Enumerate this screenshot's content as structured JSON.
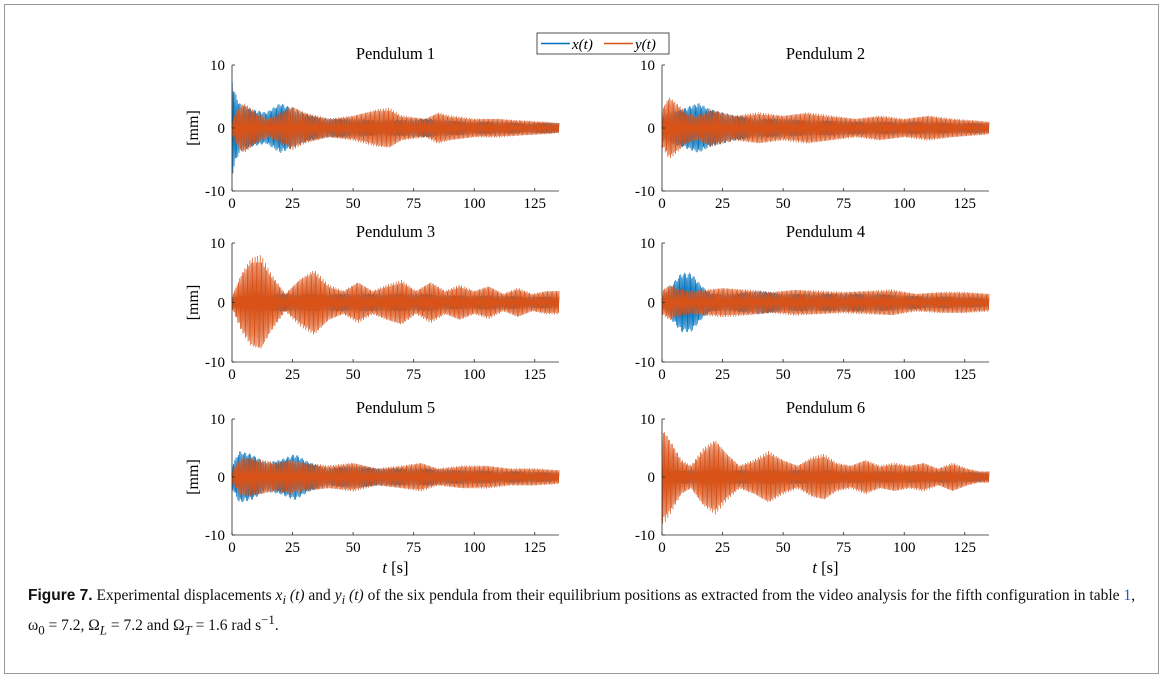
{
  "figure": {
    "caption": {
      "label": "Figure 7.",
      "part1": " Experimental displacements ",
      "var_x": "x",
      "sub_i": "i",
      "arg_t": " (t)",
      "and": " and ",
      "var_y": "y",
      "part2": " of the six pendula from their equilibrium positions as extracted from the video analysis for the fifth configuration in table ",
      "table_ref": "1",
      "part3": ", ω",
      "sub_0": "0",
      "part4": " = 7.2, Ω",
      "sub_L": "L",
      "part5": " = 7.2 and Ω",
      "sub_T": "T",
      "part6": " = 1.6 rad s",
      "sup": "−1",
      "part7": "."
    },
    "legend": {
      "x_label": "x(t)",
      "y_label": "y(t)",
      "position": "top-center"
    },
    "ylabel": "[mm]",
    "xlabel_var": "t",
    "xlabel_unit": "[s]"
  },
  "colors": {
    "x_series": "#0072BD",
    "y_series": "#D95319",
    "axes": "#262626"
  },
  "chart_data": [
    {
      "type": "line",
      "title": "Pendulum 1",
      "xlim": [
        0,
        135
      ],
      "ylim": [
        -10,
        10
      ],
      "xticks": [
        "0",
        "25",
        "50",
        "75",
        "100",
        "125"
      ],
      "yticks": [
        "10",
        "0",
        "-10"
      ],
      "ylabel": "[mm]",
      "xlabel": "",
      "series": [
        {
          "name": "x(t)",
          "envelope_x": [
            0,
            1,
            3,
            8,
            14,
            20,
            26,
            32,
            40,
            50,
            60,
            70,
            80,
            90,
            100,
            110,
            120,
            130,
            135
          ],
          "envelope_amp": [
            8,
            6,
            4,
            3,
            2.5,
            4,
            3,
            2,
            1.5,
            1.5,
            1.2,
            1.3,
            1.5,
            1.2,
            1.0,
            1.0,
            0.8,
            0.8,
            0.8
          ]
        },
        {
          "name": "y(t)",
          "envelope_x": [
            0,
            2,
            5,
            10,
            15,
            20,
            25,
            30,
            40,
            50,
            60,
            65,
            70,
            80,
            85,
            90,
            100,
            110,
            120,
            130,
            135
          ],
          "envelope_amp": [
            1,
            3,
            4,
            2.5,
            1.5,
            2.5,
            3.5,
            2.5,
            1.5,
            2,
            3,
            3.2,
            2,
            1.5,
            2.5,
            2,
            1.5,
            1.5,
            1.2,
            1.0,
            0.8
          ]
        }
      ]
    },
    {
      "type": "line",
      "title": "Pendulum 2",
      "xlim": [
        0,
        135
      ],
      "ylim": [
        -10,
        10
      ],
      "xticks": [
        "0",
        "25",
        "50",
        "75",
        "100",
        "125"
      ],
      "yticks": [
        "10",
        "0",
        "-10"
      ],
      "ylabel": "",
      "xlabel": "",
      "series": [
        {
          "name": "x(t)",
          "envelope_x": [
            0,
            3,
            8,
            15,
            20,
            30,
            40,
            50,
            60,
            70,
            80,
            90,
            100,
            110,
            120,
            130,
            135
          ],
          "envelope_amp": [
            2,
            2.5,
            3,
            4,
            3,
            2,
            1.5,
            1.5,
            1.2,
            1.2,
            1.0,
            1.0,
            1.0,
            1.0,
            0.8,
            0.8,
            0.8
          ]
        },
        {
          "name": "y(t)",
          "envelope_x": [
            0,
            3,
            6,
            10,
            15,
            20,
            25,
            30,
            40,
            50,
            60,
            70,
            80,
            90,
            100,
            110,
            120,
            130,
            135
          ],
          "envelope_amp": [
            3,
            5,
            4,
            2.5,
            2,
            3,
            2.5,
            2,
            2.5,
            2,
            2.5,
            2,
            1.5,
            2,
            1.5,
            2,
            1.5,
            1.2,
            1.0
          ]
        }
      ]
    },
    {
      "type": "line",
      "title": "Pendulum 3",
      "xlim": [
        0,
        135
      ],
      "ylim": [
        -10,
        10
      ],
      "xticks": [
        "0",
        "25",
        "50",
        "75",
        "100",
        "125"
      ],
      "yticks": [
        "10",
        "0",
        "-10"
      ],
      "ylabel": "[mm]",
      "xlabel": "",
      "series": [
        {
          "name": "x(t)",
          "envelope_x": [
            0,
            10,
            20,
            30,
            40,
            50,
            60,
            70,
            80,
            90,
            100,
            110,
            120,
            130,
            135
          ],
          "envelope_amp": [
            1,
            1.5,
            1.5,
            1.5,
            1.5,
            1.5,
            1.5,
            1.5,
            1.5,
            1.2,
            1.2,
            1.2,
            1.0,
            1.0,
            1.0
          ]
        },
        {
          "name": "y(t)",
          "envelope_x": [
            0,
            4,
            8,
            12,
            16,
            22,
            28,
            34,
            40,
            46,
            52,
            58,
            64,
            70,
            76,
            82,
            88,
            94,
            100,
            106,
            112,
            118,
            124,
            130,
            135
          ],
          "envelope_amp": [
            1,
            5,
            7.5,
            8,
            5,
            1.5,
            4,
            5.5,
            3,
            2,
            3.5,
            2,
            3,
            3.8,
            2,
            3.5,
            2,
            3,
            2,
            2.8,
            1.5,
            2.5,
            1.5,
            2,
            2
          ]
        }
      ]
    },
    {
      "type": "line",
      "title": "Pendulum 4",
      "xlim": [
        0,
        135
      ],
      "ylim": [
        -10,
        10
      ],
      "xticks": [
        "0",
        "25",
        "50",
        "75",
        "100",
        "125"
      ],
      "yticks": [
        "10",
        "0",
        "-10"
      ],
      "ylabel": "",
      "xlabel": "",
      "series": [
        {
          "name": "x(t)",
          "envelope_x": [
            0,
            4,
            8,
            12,
            16,
            20,
            30,
            40,
            50,
            60,
            70,
            80,
            90,
            100,
            110,
            120,
            130,
            135
          ],
          "envelope_amp": [
            1,
            3,
            5,
            5,
            3,
            1.5,
            1.5,
            2,
            1.5,
            1.5,
            1.5,
            1.5,
            1.5,
            1.2,
            1.0,
            1.0,
            0.8,
            0.8
          ]
        },
        {
          "name": "y(t)",
          "envelope_x": [
            0,
            3,
            6,
            12,
            18,
            25,
            35,
            45,
            55,
            65,
            75,
            85,
            95,
            105,
            115,
            125,
            135
          ],
          "envelope_amp": [
            2,
            3,
            2.5,
            2,
            2.2,
            2.5,
            2.2,
            1.8,
            2.2,
            2,
            1.8,
            2,
            2.2,
            1.5,
            1.8,
            1.8,
            1.5
          ]
        }
      ]
    },
    {
      "type": "line",
      "title": "Pendulum 5",
      "xlim": [
        0,
        135
      ],
      "ylim": [
        -10,
        10
      ],
      "xticks": [
        "0",
        "25",
        "50",
        "75",
        "100",
        "125"
      ],
      "yticks": [
        "10",
        "0",
        "-10"
      ],
      "ylabel": "[mm]",
      "xlabel": "t [s]",
      "series": [
        {
          "name": "x(t)",
          "envelope_x": [
            0,
            3,
            8,
            14,
            20,
            26,
            32,
            40,
            50,
            60,
            70,
            80,
            90,
            100,
            110,
            120,
            130,
            135
          ],
          "envelope_amp": [
            2,
            4.5,
            4,
            2.5,
            3,
            4,
            2.5,
            1.5,
            2,
            1.5,
            1.5,
            1.5,
            1.2,
            1.2,
            1.0,
            1.0,
            0.8,
            0.8
          ]
        },
        {
          "name": "y(t)",
          "envelope_x": [
            0,
            3,
            6,
            12,
            18,
            24,
            30,
            40,
            50,
            55,
            60,
            70,
            78,
            85,
            95,
            105,
            115,
            125,
            135
          ],
          "envelope_amp": [
            1,
            3,
            3.5,
            3,
            2.5,
            3,
            2.5,
            2,
            2.5,
            2,
            1.5,
            2,
            2.5,
            1.5,
            2,
            2,
            1.5,
            1.5,
            1.2
          ]
        }
      ]
    },
    {
      "type": "line",
      "title": "Pendulum 6",
      "xlim": [
        0,
        135
      ],
      "ylim": [
        -10,
        10
      ],
      "xticks": [
        "0",
        "25",
        "50",
        "75",
        "100",
        "125"
      ],
      "yticks": [
        "10",
        "0",
        "-10"
      ],
      "ylabel": "",
      "xlabel": "t [s]",
      "series": [
        {
          "name": "x(t)",
          "envelope_x": [
            0,
            10,
            20,
            30,
            40,
            50,
            60,
            70,
            80,
            90,
            100,
            110,
            120,
            130,
            135
          ],
          "envelope_amp": [
            1,
            1.2,
            1.2,
            1.2,
            1.2,
            1.2,
            1.2,
            1.2,
            1.0,
            1.0,
            1.0,
            1.0,
            1.0,
            0.8,
            0.8
          ]
        },
        {
          "name": "y(t)",
          "envelope_x": [
            0,
            1,
            4,
            8,
            12,
            17,
            22,
            27,
            32,
            38,
            44,
            50,
            56,
            62,
            67,
            72,
            78,
            84,
            90,
            96,
            102,
            108,
            114,
            120,
            126,
            131,
            135
          ],
          "envelope_amp": [
            8,
            8,
            6,
            3,
            2,
            5,
            6.5,
            4,
            2,
            3,
            4.5,
            3,
            2,
            3.5,
            4,
            2.5,
            2,
            3,
            2,
            2.5,
            2,
            2.5,
            1.5,
            2.5,
            1.5,
            1,
            1
          ]
        }
      ]
    }
  ]
}
